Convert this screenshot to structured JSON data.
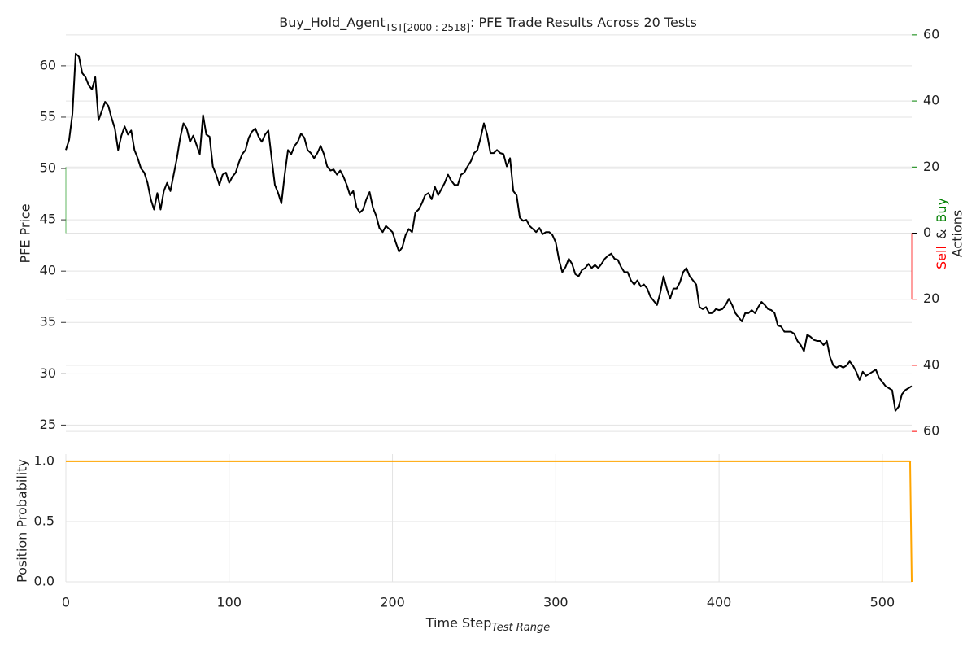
{
  "chart_data": {
    "type": "line",
    "title": {
      "main": "Buy_Hold_Agent",
      "sub": "TST[2000 : 2518]",
      "rest": ": PFE Trade Results Across 20 Tests"
    },
    "ylabel": "PFE Price",
    "y2label": {
      "sell": "Sell",
      "amp": "&",
      "buy": "Buy",
      "second": "Actions"
    },
    "xlabel": {
      "main": "Time Step",
      "sub": "Test Range"
    },
    "xlim": [
      0,
      518
    ],
    "xticks": [
      0,
      100,
      200,
      300,
      400,
      500
    ],
    "ylim": [
      24,
      63.4
    ],
    "yticks": [
      25,
      30,
      35,
      40,
      45,
      50,
      55,
      60
    ],
    "y2lim": [
      -61.2,
      61.2
    ],
    "y2ticks": [
      {
        "value": -60,
        "label": "60"
      },
      {
        "value": -40,
        "label": "40"
      },
      {
        "value": -20,
        "label": "20"
      },
      0,
      20,
      40,
      60
    ],
    "grid": true,
    "series": [
      {
        "color": "#000000",
        "x": [
          0,
          2,
          4,
          6,
          8,
          10,
          12,
          14,
          16,
          18,
          20,
          22,
          24,
          26,
          28,
          30,
          32,
          34,
          36,
          38,
          40,
          42,
          44,
          46,
          48,
          50,
          52,
          54,
          56,
          58,
          60,
          62,
          64,
          66,
          68,
          70,
          72,
          74,
          76,
          78,
          80,
          82,
          84,
          86,
          88,
          90,
          92,
          94,
          96,
          98,
          100,
          102,
          104,
          106,
          108,
          110,
          112,
          114,
          116,
          118,
          120,
          122,
          124,
          126,
          128,
          130,
          132,
          134,
          136,
          138,
          140,
          142,
          144,
          146,
          148,
          150,
          152,
          154,
          156,
          158,
          160,
          162,
          164,
          166,
          168,
          170,
          172,
          174,
          176,
          178,
          180,
          182,
          184,
          186,
          188,
          190,
          192,
          194,
          196,
          198,
          200,
          202,
          204,
          206,
          208,
          210,
          212,
          214,
          216,
          218,
          220,
          222,
          224,
          226,
          228,
          230,
          232,
          234,
          236,
          238,
          240,
          242,
          244,
          246,
          248,
          250,
          252,
          254,
          256,
          258,
          260,
          262,
          264,
          266,
          268,
          270,
          272,
          274,
          276,
          278,
          280,
          282,
          284,
          286,
          288,
          290,
          292,
          294,
          296,
          298,
          300,
          302,
          304,
          306,
          308,
          310,
          312,
          314,
          316,
          318,
          320,
          322,
          324,
          326,
          328,
          330,
          332,
          334,
          336,
          338,
          340,
          342,
          344,
          346,
          348,
          350,
          352,
          354,
          356,
          358,
          360,
          362,
          364,
          366,
          368,
          370,
          372,
          374,
          376,
          378,
          380,
          382,
          384,
          386,
          388,
          390,
          392,
          394,
          396,
          398,
          400,
          402,
          404,
          406,
          408,
          410,
          412,
          414,
          416,
          418,
          420,
          422,
          424,
          426,
          428,
          430,
          432,
          434,
          436,
          438,
          440,
          442,
          444,
          446,
          448,
          450,
          452,
          454,
          456,
          458,
          460,
          462,
          464,
          466,
          468,
          470,
          472,
          474,
          476,
          478,
          480,
          482,
          484,
          486,
          488,
          490,
          492,
          494,
          496,
          498,
          500,
          502,
          504,
          506,
          508,
          510,
          512,
          514,
          516,
          518
        ],
        "values": [
          51.8,
          52.8,
          55.3,
          61.2,
          60.9,
          59.3,
          58.9,
          58.1,
          57.7,
          58.9,
          54.7,
          55.6,
          56.5,
          56.1,
          54.9,
          53.9,
          51.8,
          53.2,
          54.1,
          53.3,
          53.7,
          51.8,
          51.0,
          50.0,
          49.6,
          48.6,
          47.0,
          46.0,
          47.6,
          46.0,
          47.8,
          48.6,
          47.8,
          49.4,
          51.0,
          53.0,
          54.4,
          53.9,
          52.6,
          53.2,
          52.3,
          51.4,
          55.2,
          53.3,
          53.1,
          50.2,
          49.4,
          48.4,
          49.4,
          49.6,
          48.6,
          49.2,
          49.6,
          50.6,
          51.4,
          51.8,
          53.0,
          53.6,
          53.9,
          53.1,
          52.6,
          53.3,
          53.7,
          51.0,
          48.4,
          47.6,
          46.6,
          49.4,
          51.8,
          51.4,
          52.2,
          52.6,
          53.4,
          53.0,
          51.8,
          51.5,
          51.0,
          51.5,
          52.2,
          51.4,
          50.2,
          49.8,
          49.9,
          49.4,
          49.8,
          49.2,
          48.4,
          47.4,
          47.8,
          46.2,
          45.7,
          46.0,
          47.0,
          47.7,
          46.2,
          45.4,
          44.2,
          43.8,
          44.4,
          44.1,
          43.8,
          42.8,
          41.9,
          42.3,
          43.5,
          44.1,
          43.8,
          45.7,
          46.0,
          46.6,
          47.4,
          47.6,
          47.0,
          48.2,
          47.4,
          48.0,
          48.6,
          49.4,
          48.8,
          48.4,
          48.4,
          49.4,
          49.6,
          50.2,
          50.7,
          51.5,
          51.8,
          53.0,
          54.4,
          53.3,
          51.5,
          51.5,
          51.8,
          51.5,
          51.4,
          50.2,
          51.0,
          47.8,
          47.4,
          45.2,
          44.9,
          45.0,
          44.4,
          44.1,
          43.8,
          44.2,
          43.6,
          43.8,
          43.8,
          43.5,
          42.8,
          41.1,
          39.9,
          40.4,
          41.2,
          40.7,
          39.7,
          39.5,
          40.1,
          40.3,
          40.7,
          40.3,
          40.6,
          40.3,
          40.7,
          41.2,
          41.5,
          41.7,
          41.2,
          41.1,
          40.4,
          39.9,
          39.9,
          39.1,
          38.7,
          39.1,
          38.5,
          38.7,
          38.3,
          37.5,
          37.1,
          36.7,
          37.9,
          39.5,
          38.3,
          37.3,
          38.3,
          38.3,
          38.9,
          39.9,
          40.3,
          39.5,
          39.1,
          38.7,
          36.5,
          36.3,
          36.5,
          35.9,
          35.9,
          36.3,
          36.2,
          36.3,
          36.7,
          37.3,
          36.7,
          35.9,
          35.5,
          35.1,
          35.9,
          35.9,
          36.2,
          35.9,
          36.5,
          37.0,
          36.7,
          36.3,
          36.2,
          35.9,
          34.7,
          34.6,
          34.1,
          34.1,
          34.1,
          33.9,
          33.2,
          32.8,
          32.2,
          33.8,
          33.6,
          33.3,
          33.2,
          33.2,
          32.8,
          33.2,
          31.6,
          30.8,
          30.6,
          30.8,
          30.6,
          30.8,
          31.2,
          30.8,
          30.2,
          29.4,
          30.2,
          29.8,
          30.0,
          30.2,
          30.4,
          29.6,
          29.2,
          28.8,
          28.6,
          28.4,
          26.4,
          26.8,
          28.0,
          28.4,
          28.6,
          28.8
        ]
      }
    ],
    "actions": [
      {
        "color": "#2ca02c",
        "x": [
          0
        ],
        "values": [
          20
        ]
      },
      {
        "color": "#ff0000",
        "x": [
          518
        ],
        "values": [
          -20
        ]
      }
    ],
    "position": {
      "type": "line",
      "ylabel": "Position Probability",
      "ylim": [
        0,
        1.06
      ],
      "yticks": [
        {
          "value": 0,
          "label": "0.0"
        },
        {
          "value": 0.5,
          "label": "0.5"
        },
        {
          "value": 1,
          "label": "1.0"
        }
      ],
      "color": "#ffa500",
      "x": [
        0,
        517,
        518
      ],
      "values": [
        1,
        1,
        0
      ]
    }
  }
}
